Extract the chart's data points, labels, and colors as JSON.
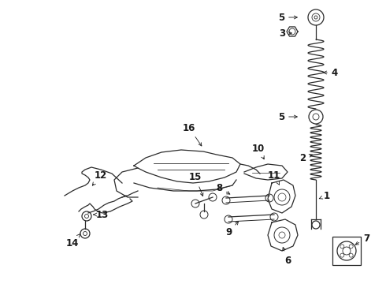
{
  "background_color": "#ffffff",
  "fig_width": 4.9,
  "fig_height": 3.6,
  "dpi": 100,
  "line_color": "#2a2a2a",
  "label_color": "#1a1a1a",
  "label_fontsize": 8.5,
  "lw": 0.9
}
